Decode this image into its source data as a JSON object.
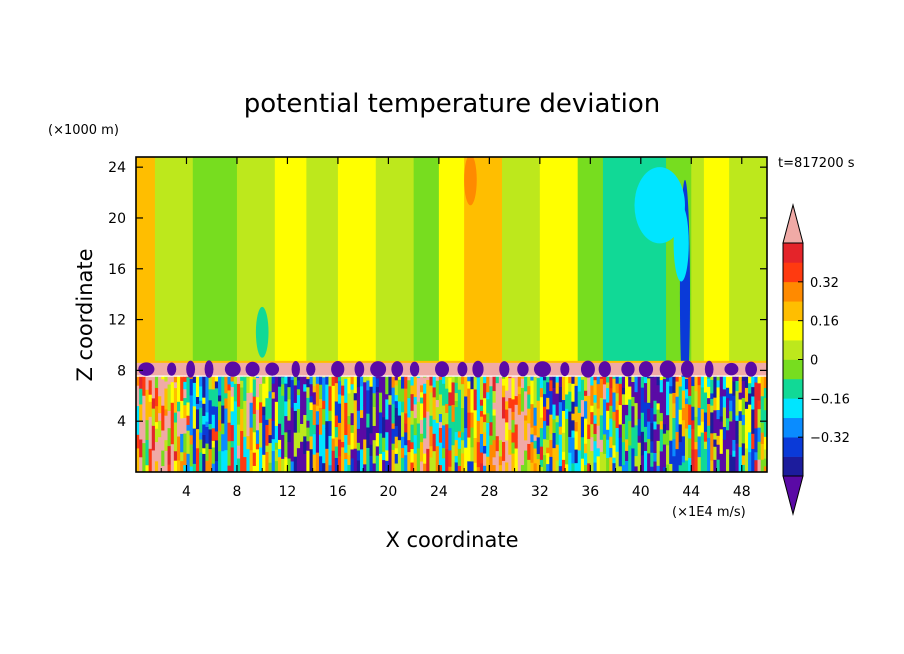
{
  "chart_data": {
    "type": "heatmap",
    "title": "potential temperature deviation",
    "xlabel": "X coordinate",
    "ylabel": "Z coordinate",
    "x_unit": "(×1E4 m/s)",
    "y_unit": "(×1000 m)",
    "time_label": "t=817200 s",
    "xlim": [
      0,
      50
    ],
    "ylim": [
      0,
      24.8
    ],
    "x_ticks": [
      4,
      8,
      12,
      16,
      20,
      24,
      28,
      32,
      36,
      40,
      44,
      48
    ],
    "y_ticks": [
      4,
      8,
      12,
      16,
      20,
      24
    ],
    "tropopause_z": 8.4,
    "colorbar": {
      "levels": [
        -0.48,
        -0.4,
        -0.32,
        -0.24,
        -0.16,
        -0.08,
        0,
        0.08,
        0.16,
        0.24,
        0.32,
        0.4,
        0.48
      ],
      "colors": [
        "#5a0aa5",
        "#1c1c9c",
        "#0a3ad8",
        "#0a8cff",
        "#00e5ff",
        "#11d996",
        "#77dd1f",
        "#bde81c",
        "#ffff00",
        "#ffbe00",
        "#ff8a00",
        "#ff3a10",
        "#e4242a",
        "#f0aaa6"
      ],
      "tick_labels": [
        "0.32",
        "0.16",
        "0",
        "−0.16",
        "−0.32"
      ],
      "tick_values": [
        0.32,
        0.16,
        0,
        -0.16,
        -0.32
      ],
      "under_color": "#5a0aa5",
      "over_color": "#f0aaa6"
    },
    "upper_bands": [
      {
        "x": [
          0,
          1.5
        ],
        "value": 0.18
      },
      {
        "x": [
          1.5,
          4.5
        ],
        "value": 0.03
      },
      {
        "x": [
          4.5,
          8
        ],
        "value": -0.04
      },
      {
        "x": [
          8,
          11
        ],
        "value": 0.03
      },
      {
        "x": [
          11,
          13.5
        ],
        "value": 0.1
      },
      {
        "x": [
          13.5,
          16
        ],
        "value": 0.03
      },
      {
        "x": [
          16,
          19
        ],
        "value": 0.12
      },
      {
        "x": [
          19,
          22
        ],
        "value": 0.04
      },
      {
        "x": [
          22,
          24
        ],
        "value": -0.04
      },
      {
        "x": [
          24,
          26
        ],
        "value": 0.14
      },
      {
        "x": [
          26,
          29
        ],
        "value": 0.22
      },
      {
        "x": [
          29,
          32
        ],
        "value": 0.04
      },
      {
        "x": [
          32,
          35
        ],
        "value": 0.13
      },
      {
        "x": [
          35,
          37
        ],
        "value": -0.04
      },
      {
        "x": [
          37,
          42
        ],
        "value": -0.12
      },
      {
        "x": [
          42,
          44
        ],
        "value": -0.06
      },
      {
        "x": [
          44,
          45
        ],
        "value": 0.05
      },
      {
        "x": [
          45,
          47
        ],
        "value": 0.12
      },
      {
        "x": [
          47,
          50
        ],
        "value": 0.04
      }
    ],
    "upper_blobs": [
      {
        "x": 43.5,
        "z": 14,
        "dx": 0.4,
        "dz": 9,
        "value": -0.34
      },
      {
        "x": 43.2,
        "z": 18,
        "dx": 0.6,
        "dz": 3,
        "value": -0.2
      },
      {
        "x": 41.5,
        "z": 21,
        "dx": 2,
        "dz": 3,
        "value": -0.2
      },
      {
        "x": 10,
        "z": 11,
        "dx": 0.5,
        "dz": 2,
        "value": -0.1
      },
      {
        "x": 26.5,
        "z": 23,
        "dx": 0.5,
        "dz": 2,
        "value": 0.26
      }
    ],
    "lower_layer_summary": {
      "z_range": [
        0,
        7.5
      ],
      "value_range": [
        -0.48,
        0.48
      ],
      "dominant_pattern": "vertically elongated positive and negative cells"
    }
  }
}
